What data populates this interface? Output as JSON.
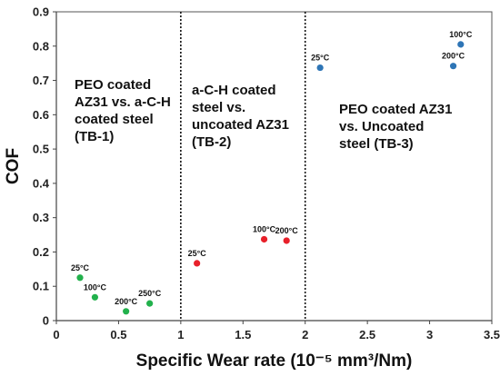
{
  "chart_data": {
    "type": "scatter",
    "xlabel": "Specific Wear rate (10⁻⁵ mm³/Nm)",
    "ylabel": "COF",
    "xlim": [
      0,
      3.5
    ],
    "ylim": [
      0,
      0.9
    ],
    "xticks": [
      "0",
      "0.5",
      "1",
      "1.5",
      "2",
      "2.5",
      "3",
      "3.5"
    ],
    "yticks": [
      "0",
      "0.1",
      "0.2",
      "0.3",
      "0.4",
      "0.5",
      "0.6",
      "0.7",
      "0.8",
      "0.9"
    ],
    "xtick_values": [
      0,
      0.5,
      1,
      1.5,
      2,
      2.5,
      3,
      3.5
    ],
    "ytick_values": [
      0,
      0.1,
      0.2,
      0.3,
      0.4,
      0.5,
      0.6,
      0.7,
      0.8,
      0.9
    ],
    "dividers": [
      1,
      2
    ],
    "grid": false,
    "regions": [
      {
        "lines": [
          "PEO coated",
          "AZ31 vs. a-C-H",
          "coated steel",
          "(TB-1)"
        ]
      },
      {
        "lines": [
          "a-C-H coated",
          "steel vs.",
          "uncoated AZ31",
          "(TB-2)"
        ]
      },
      {
        "lines": [
          "PEO coated AZ31",
          "vs. Uncoated",
          "steel (TB-3)"
        ]
      }
    ],
    "series": [
      {
        "color": "#22b14c",
        "points": [
          {
            "x": 0.19,
            "y": 0.125,
            "label": "25°C"
          },
          {
            "x": 0.31,
            "y": 0.068,
            "label": "100°C"
          },
          {
            "x": 0.56,
            "y": 0.027,
            "label": "200°C"
          },
          {
            "x": 0.75,
            "y": 0.05,
            "label": "250°C"
          }
        ]
      },
      {
        "color": "#e8202a",
        "points": [
          {
            "x": 1.13,
            "y": 0.167,
            "label": "25°C"
          },
          {
            "x": 1.67,
            "y": 0.237,
            "label": "100°C"
          },
          {
            "x": 1.85,
            "y": 0.233,
            "label": "200°C"
          }
        ]
      },
      {
        "color": "#2e75b6",
        "points": [
          {
            "x": 2.12,
            "y": 0.737,
            "label": "25°C"
          },
          {
            "x": 3.19,
            "y": 0.742,
            "label": "200°C"
          },
          {
            "x": 3.25,
            "y": 0.805,
            "label": "100°C"
          }
        ]
      }
    ]
  }
}
